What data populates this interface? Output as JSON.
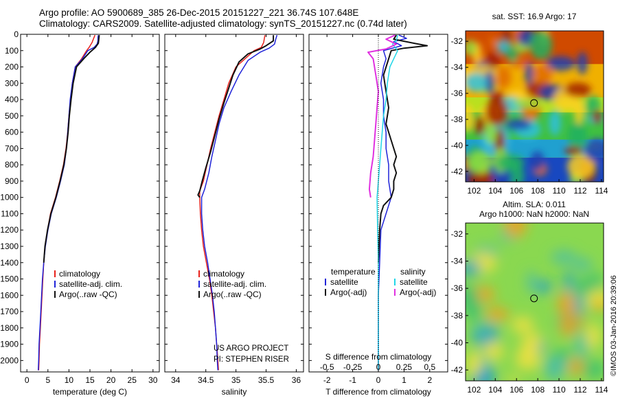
{
  "header": {
    "line1": "Argo profile: AO 5900689_385 26-Dec-2015 20151227_221 36.74S 107.648E",
    "line2": "Climatology: CARS2009. Satellite-adjusted climatology: synTS_20151227.nc (0.74d later)"
  },
  "stamp": "©IMOS 03-Jan-2016 20:39:06",
  "project": {
    "line1": "US ARGO PROJECT",
    "line2": "PI: STEPHEN RISER"
  },
  "colors": {
    "climatology": "#e8201a",
    "satellite": "#1e22d8",
    "argo": "#111111",
    "satellite_s": "#1ed6e8",
    "argo_s": "#e030e0"
  },
  "chart_data": [
    {
      "type": "line",
      "xlabel": "temperature (deg C)",
      "xticks": [
        0,
        5,
        10,
        15,
        20,
        25,
        30
      ],
      "xlim": [
        -1.5,
        31.5
      ],
      "yticks": [
        0,
        100,
        200,
        300,
        400,
        500,
        600,
        700,
        800,
        900,
        1000,
        1100,
        1200,
        1300,
        1400,
        1500,
        1600,
        1700,
        1800,
        1900,
        2000
      ],
      "ylim": [
        2070,
        0
      ],
      "legend": [
        "climatology",
        "satellite-adj. clim.",
        "Argo(..raw -QC)"
      ],
      "series": [
        {
          "name": "climatology",
          "color": "#e8201a",
          "points": [
            [
              16.2,
              5
            ],
            [
              15.8,
              30
            ],
            [
              15.5,
              50
            ],
            [
              14.8,
              80
            ],
            [
              14.2,
              100
            ],
            [
              13.0,
              150
            ],
            [
              11.5,
              200
            ],
            [
              10.8,
              300
            ],
            [
              10.4,
              400
            ],
            [
              10.0,
              500
            ],
            [
              9.7,
              600
            ],
            [
              9.3,
              700
            ],
            [
              8.7,
              800
            ],
            [
              7.8,
              900
            ],
            [
              6.8,
              1000
            ],
            [
              5.6,
              1100
            ],
            [
              4.9,
              1200
            ],
            [
              4.3,
              1300
            ],
            [
              4.0,
              1400
            ],
            [
              3.8,
              1500
            ],
            [
              3.6,
              1600
            ],
            [
              3.4,
              1700
            ],
            [
              3.2,
              1800
            ],
            [
              3.0,
              1900
            ],
            [
              2.9,
              2000
            ],
            [
              2.8,
              2060
            ]
          ]
        },
        {
          "name": "satellite",
          "color": "#1e22d8",
          "points": [
            [
              17.0,
              5
            ],
            [
              16.9,
              20
            ],
            [
              16.9,
              40
            ],
            [
              16.7,
              60
            ],
            [
              16.0,
              80
            ],
            [
              14.5,
              100
            ],
            [
              13.2,
              150
            ],
            [
              11.5,
              200
            ],
            [
              10.8,
              300
            ],
            [
              10.3,
              400
            ],
            [
              10.0,
              500
            ],
            [
              9.7,
              600
            ],
            [
              9.4,
              700
            ],
            [
              8.9,
              800
            ],
            [
              8.0,
              900
            ],
            [
              7.0,
              1000
            ],
            [
              5.8,
              1100
            ],
            [
              5.0,
              1200
            ],
            [
              4.4,
              1300
            ],
            [
              4.0,
              1400
            ],
            [
              3.7,
              1500
            ],
            [
              3.5,
              1600
            ],
            [
              3.3,
              1700
            ],
            [
              3.1,
              1800
            ],
            [
              2.9,
              1900
            ],
            [
              2.8,
              2000
            ],
            [
              2.7,
              2060
            ]
          ]
        },
        {
          "name": "Argo",
          "color": "#111111",
          "points": [
            [
              17.2,
              5
            ],
            [
              17.1,
              30
            ],
            [
              17.0,
              55
            ],
            [
              16.3,
              80
            ],
            [
              15.0,
              110
            ],
            [
              13.5,
              150
            ],
            [
              11.8,
              200
            ],
            [
              11.0,
              300
            ],
            [
              10.5,
              400
            ],
            [
              10.1,
              500
            ],
            [
              9.8,
              600
            ],
            [
              9.4,
              700
            ],
            [
              8.8,
              800
            ],
            [
              7.9,
              900
            ],
            [
              6.9,
              1000
            ],
            [
              5.7,
              1100
            ],
            [
              4.9,
              1200
            ],
            [
              4.3,
              1300
            ],
            [
              4.0,
              1400
            ]
          ]
        }
      ]
    },
    {
      "type": "line",
      "xlabel": "salinity",
      "xticks": [
        34,
        34.5,
        35,
        35.5,
        36
      ],
      "xlim": [
        33.82,
        36.12
      ],
      "ylim": [
        2070,
        0
      ],
      "legend": [
        "climatology",
        "satellite-adj. clim.",
        "Argo(..raw -QC)"
      ],
      "series": [
        {
          "name": "climatology",
          "color": "#e8201a",
          "points": [
            [
              35.48,
              5
            ],
            [
              35.46,
              50
            ],
            [
              35.42,
              80
            ],
            [
              35.3,
              100
            ],
            [
              35.15,
              150
            ],
            [
              35.0,
              200
            ],
            [
              34.88,
              300
            ],
            [
              34.8,
              400
            ],
            [
              34.72,
              500
            ],
            [
              34.65,
              600
            ],
            [
              34.58,
              700
            ],
            [
              34.52,
              800
            ],
            [
              34.46,
              900
            ],
            [
              34.4,
              960
            ],
            [
              34.4,
              1000
            ],
            [
              34.41,
              1100
            ],
            [
              34.43,
              1200
            ],
            [
              34.46,
              1300
            ],
            [
              34.51,
              1400
            ],
            [
              34.56,
              1500
            ],
            [
              34.6,
              1600
            ],
            [
              34.63,
              1700
            ],
            [
              34.66,
              1800
            ],
            [
              34.68,
              1900
            ],
            [
              34.7,
              2000
            ],
            [
              34.71,
              2060
            ]
          ]
        },
        {
          "name": "satellite",
          "color": "#1e22d8",
          "points": [
            [
              35.68,
              5
            ],
            [
              35.66,
              30
            ],
            [
              35.64,
              60
            ],
            [
              35.55,
              85
            ],
            [
              35.4,
              110
            ],
            [
              35.2,
              160
            ],
            [
              35.05,
              250
            ],
            [
              34.92,
              350
            ],
            [
              34.8,
              450
            ],
            [
              34.72,
              550
            ],
            [
              34.66,
              650
            ],
            [
              34.6,
              750
            ],
            [
              34.55,
              850
            ],
            [
              34.48,
              950
            ],
            [
              34.43,
              1000
            ],
            [
              34.43,
              1100
            ],
            [
              34.45,
              1200
            ],
            [
              34.48,
              1300
            ],
            [
              34.53,
              1400
            ],
            [
              34.57,
              1500
            ],
            [
              34.61,
              1600
            ],
            [
              34.64,
              1700
            ],
            [
              34.66,
              1800
            ],
            [
              34.68,
              1900
            ],
            [
              34.69,
              2000
            ],
            [
              34.7,
              2060
            ]
          ]
        },
        {
          "name": "Argo",
          "color": "#111111",
          "points": [
            [
              35.62,
              5
            ],
            [
              35.62,
              40
            ],
            [
              35.5,
              70
            ],
            [
              35.4,
              90
            ],
            [
              35.2,
              120
            ],
            [
              35.05,
              170
            ],
            [
              34.95,
              250
            ],
            [
              34.88,
              330
            ],
            [
              34.8,
              420
            ],
            [
              34.72,
              520
            ],
            [
              34.65,
              620
            ],
            [
              34.58,
              720
            ],
            [
              34.5,
              820
            ],
            [
              34.44,
              900
            ],
            [
              34.4,
              960
            ],
            [
              34.37,
              985
            ],
            [
              34.4,
              1000
            ]
          ]
        }
      ]
    },
    {
      "type": "line",
      "xlabel": "T difference from climatology",
      "x2label": "S difference from climatology",
      "xticks": [
        -2,
        -1,
        0,
        1,
        2
      ],
      "x2ticks": [
        -0.5,
        -0.25,
        0,
        0.25,
        0.5
      ],
      "xlim": [
        -2.7,
        2.7
      ],
      "ylim": [
        2070,
        0
      ],
      "legend_headers": [
        "temperature",
        "salinity"
      ],
      "legend": [
        "satellite",
        "Argo(-adj)",
        "satellite",
        "Argo(-adj)"
      ],
      "series": [
        {
          "name": "satellite",
          "color": "#1e22d8",
          "points": [
            [
              0.8,
              5
            ],
            [
              1.1,
              25
            ],
            [
              0.6,
              45
            ],
            [
              0.9,
              70
            ],
            [
              0.2,
              100
            ],
            [
              0.3,
              150
            ],
            [
              0.2,
              200
            ],
            [
              0.1,
              300
            ],
            [
              0.2,
              400
            ],
            [
              0.2,
              500
            ],
            [
              0.3,
              600
            ],
            [
              0.3,
              700
            ],
            [
              0.4,
              800
            ],
            [
              0.4,
              900
            ],
            [
              0.5,
              1000
            ],
            [
              0.3,
              1100
            ],
            [
              0.1,
              1200
            ],
            [
              0.05,
              1400
            ],
            [
              0.0,
              1600
            ],
            [
              0.0,
              2060
            ]
          ]
        },
        {
          "name": "Argo(-adj)",
          "color": "#111111",
          "points": [
            [
              0.7,
              5
            ],
            [
              0.6,
              30
            ],
            [
              1.4,
              55
            ],
            [
              1.9,
              70
            ],
            [
              1.0,
              85
            ],
            [
              0.5,
              100
            ],
            [
              0.4,
              150
            ],
            [
              0.2,
              250
            ],
            [
              0.3,
              350
            ],
            [
              0.4,
              450
            ],
            [
              0.3,
              550
            ],
            [
              0.5,
              650
            ],
            [
              0.7,
              750
            ],
            [
              0.6,
              800
            ],
            [
              0.7,
              850
            ],
            [
              0.6,
              900
            ],
            [
              0.6,
              950
            ],
            [
              0.5,
              1000
            ],
            [
              0.2,
              1050
            ],
            [
              0.1,
              1100
            ],
            [
              0.05,
              1200
            ],
            [
              0.0,
              1400
            ]
          ]
        },
        {
          "name": "satellite",
          "color": "#1ed6e8",
          "points": [
            [
              0.75,
              5
            ],
            [
              0.7,
              40
            ],
            [
              0.55,
              60
            ],
            [
              0.75,
              100
            ],
            [
              0.6,
              150
            ],
            [
              0.45,
              200
            ],
            [
              0.35,
              300
            ],
            [
              0.3,
              400
            ],
            [
              0.2,
              500
            ],
            [
              0.15,
              600
            ],
            [
              0.1,
              700
            ],
            [
              0.05,
              800
            ],
            [
              0.0,
              900
            ],
            [
              -0.05,
              1000
            ],
            [
              -0.03,
              1200
            ],
            [
              0.0,
              1400
            ],
            [
              0.0,
              2060
            ]
          ]
        },
        {
          "name": "Argo(-adj)",
          "color": "#e030e0",
          "points": [
            [
              0.65,
              5
            ],
            [
              0.3,
              30
            ],
            [
              0.7,
              60
            ],
            [
              0.3,
              90
            ],
            [
              -0.4,
              110
            ],
            [
              -0.2,
              150
            ],
            [
              -0.1,
              250
            ],
            [
              0.0,
              350
            ],
            [
              -0.05,
              450
            ],
            [
              -0.1,
              550
            ],
            [
              -0.15,
              650
            ],
            [
              -0.2,
              750
            ],
            [
              -0.3,
              850
            ],
            [
              -0.35,
              950
            ],
            [
              -0.3,
              1000
            ]
          ]
        }
      ]
    },
    {
      "type": "heatmap",
      "title": "sat. SST: 16.9  Argo: 17",
      "xticks": [
        102,
        104,
        106,
        108,
        110,
        112,
        114
      ],
      "yticks": [
        -32,
        -34,
        -36,
        -38,
        -40,
        -42
      ],
      "xlim": [
        101.2,
        114.2
      ],
      "ylim": [
        -42.8,
        -31.2
      ],
      "marker": [
        107.648,
        -36.74
      ]
    },
    {
      "type": "heatmap",
      "title": "Altim. SLA: 0.011",
      "subtitle": "Argo h1000: NaN h2000: NaN",
      "xticks": [
        102,
        104,
        106,
        108,
        110,
        112,
        114
      ],
      "yticks": [
        -32,
        -34,
        -36,
        -38,
        -40,
        -42
      ],
      "xlim": [
        101.2,
        114.2
      ],
      "ylim": [
        -42.8,
        -31.2
      ],
      "marker": [
        107.648,
        -36.74
      ]
    }
  ]
}
